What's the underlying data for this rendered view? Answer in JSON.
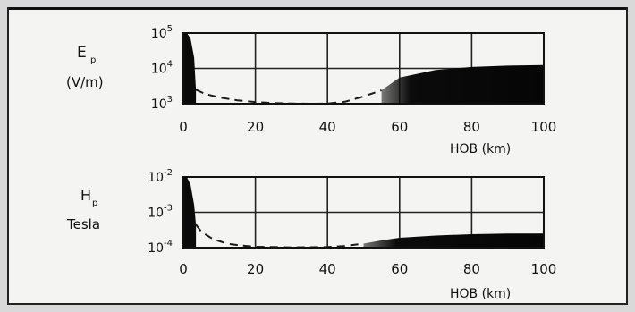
{
  "chart_data": [
    {
      "type": "area",
      "ylabel_main": "E",
      "ylabel_sub": "p",
      "ylabel_unit": "(V/m)",
      "xlabel": "HOB (km)",
      "x_ticks": [
        "0",
        "20",
        "40",
        "60",
        "80",
        "100"
      ],
      "y_ticks": [
        {
          "base": "10",
          "exp": "5"
        },
        {
          "base": "10",
          "exp": "4"
        },
        {
          "base": "10",
          "exp": "3"
        }
      ],
      "xlim": [
        0,
        100
      ],
      "ylim": [
        1000,
        100000
      ],
      "yscale": "log",
      "grid": true,
      "regions": [
        {
          "x": [
            0,
            1,
            2,
            3,
            3.5
          ],
          "y": [
            100000,
            100000,
            70000,
            20000,
            2500
          ]
        },
        {
          "x": [
            55,
            60,
            70,
            80,
            90,
            100
          ],
          "y": [
            2400,
            5500,
            9000,
            11000,
            12000,
            12500
          ]
        }
      ],
      "dashed_curve": {
        "x": [
          3.5,
          6,
          10,
          15,
          20,
          25,
          30,
          35,
          40,
          45,
          50,
          55
        ],
        "y": [
          2500,
          1900,
          1500,
          1250,
          1120,
          1050,
          1010,
          1000,
          1010,
          1150,
          1600,
          2400
        ]
      }
    },
    {
      "type": "area",
      "ylabel_main": "H",
      "ylabel_sub": "p",
      "ylabel_unit": "Tesla",
      "xlabel": "HOB (km)",
      "x_ticks": [
        "0",
        "20",
        "40",
        "60",
        "80",
        "100"
      ],
      "y_ticks": [
        {
          "base": "10",
          "exp": "-2"
        },
        {
          "base": "10",
          "exp": "-3"
        },
        {
          "base": "10",
          "exp": "-4"
        }
      ],
      "xlim": [
        0,
        100
      ],
      "ylim": [
        0.0001,
        0.01
      ],
      "yscale": "log",
      "grid": true,
      "regions": [
        {
          "x": [
            0,
            1,
            2,
            3,
            3.5
          ],
          "y": [
            0.01,
            0.01,
            0.006,
            0.0016,
            0.00045
          ]
        },
        {
          "x": [
            50,
            55,
            60,
            70,
            80,
            90,
            100
          ],
          "y": [
            0.00013,
            0.00016,
            0.00019,
            0.00022,
            0.00024,
            0.00025,
            0.00025
          ]
        }
      ],
      "dashed_curve": {
        "x": [
          3.5,
          5,
          8,
          12,
          16,
          20,
          30,
          40,
          45,
          50
        ],
        "y": [
          0.00045,
          0.00028,
          0.00018,
          0.00013,
          0.000115,
          0.000106,
          0.000102,
          0.000104,
          0.000112,
          0.00013
        ]
      }
    }
  ]
}
